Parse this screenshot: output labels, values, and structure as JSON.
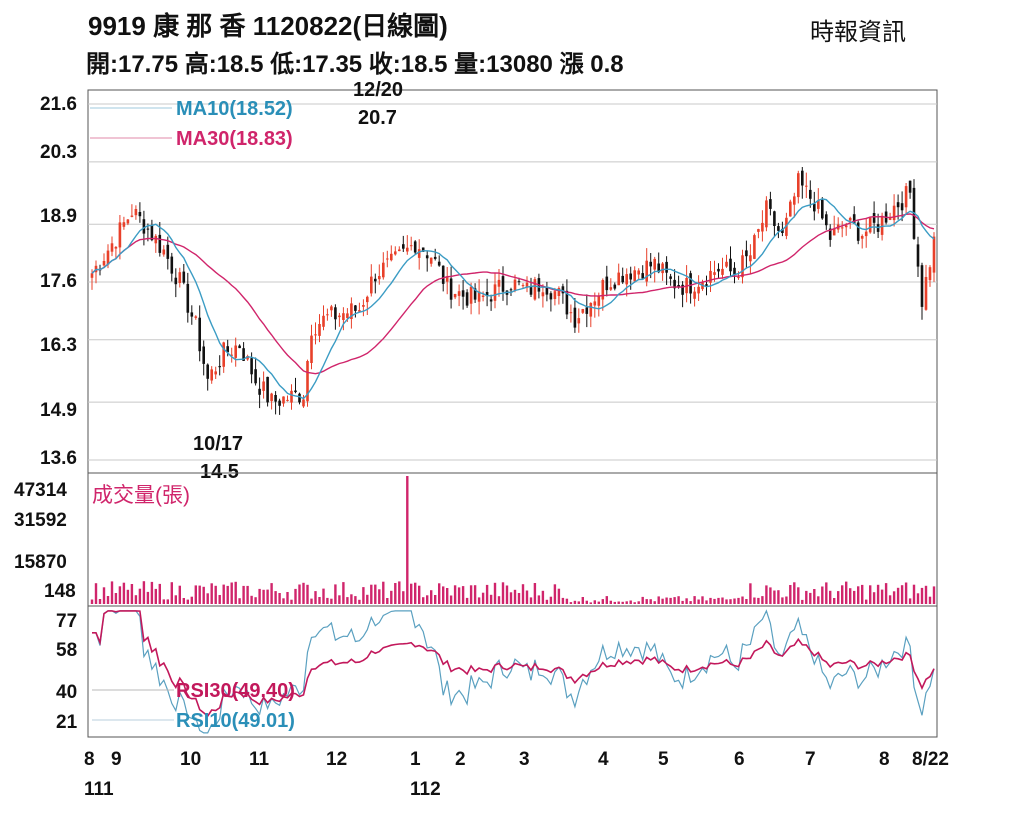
{
  "header": {
    "title": "9919  康 那 香 1120822(日線圖)",
    "source": "時報資訊",
    "quote": "開:17.75 高:18.5 低:17.35 收:18.5 量:13080 漲 0.8"
  },
  "colors": {
    "up": "#e8402a",
    "down": "#111111",
    "ma10": "#3b9cc4",
    "ma30": "#d0256b",
    "volume": "#d0256b",
    "rsi30": "#c2185b",
    "rsi10": "#5aa0c0",
    "grid": "#c8c8c8",
    "frame": "#555555"
  },
  "chart_data": [
    {
      "type": "candlestick",
      "panel": "price",
      "ylim": [
        13.6,
        21.6
      ],
      "yticks": [
        "21.6",
        "20.3",
        "18.9",
        "17.6",
        "16.3",
        "14.9",
        "13.6"
      ],
      "legend": [
        {
          "name": "MA10",
          "label": "MA10(18.52)",
          "value": 18.52
        },
        {
          "name": "MA30",
          "label": "MA30(18.83)",
          "value": 18.83
        }
      ],
      "annotations": [
        {
          "date": "12/20",
          "value": "20.7",
          "kind": "high"
        },
        {
          "date": "10/17",
          "value": "14.5",
          "kind": "low"
        }
      ],
      "last_bar": {
        "open": 17.75,
        "high": 18.5,
        "low": 17.35,
        "close": 18.5
      }
    },
    {
      "type": "bar",
      "panel": "volume",
      "title": "成交量(張)",
      "yticks": [
        "47314",
        "31592",
        "15870",
        "148"
      ],
      "peak": 47314,
      "last_value": 13080
    },
    {
      "type": "line",
      "panel": "rsi",
      "yticks": [
        "77",
        "58",
        "40",
        "21"
      ],
      "legend": [
        {
          "name": "RSI30",
          "label": "RSI30(49.40)",
          "value": 49.4
        },
        {
          "name": "RSI10",
          "label": "RSI10(49.01)",
          "value": 49.01
        }
      ]
    }
  ],
  "xaxis": {
    "months": [
      "8",
      "9",
      "10",
      "11",
      "12",
      "1",
      "2",
      "3",
      "4",
      "5",
      "6",
      "7",
      "8",
      "8/22"
    ],
    "years": [
      "111",
      "112"
    ]
  }
}
